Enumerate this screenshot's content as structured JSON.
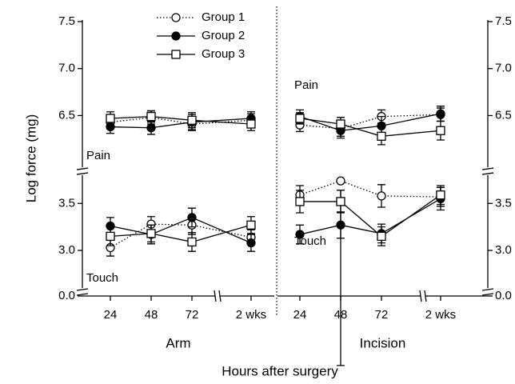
{
  "chart_data": [
    {
      "type": "line",
      "title": "Arm",
      "ylabel": "Log force (mg)",
      "xlabel": "Hours after surgery",
      "categories": [
        "24",
        "48",
        "72",
        "2 wks"
      ],
      "ylim": [
        0,
        7.5
      ],
      "y_breaks": [
        [
          0,
          2.6
        ],
        [
          3.8,
          5.95
        ]
      ],
      "yticks": [
        {
          "value": 0,
          "label": "0.0"
        },
        {
          "value": 3,
          "label": "3.0"
        },
        3.5,
        6.5,
        {
          "value": 7,
          "label": "7.0"
        },
        7.5
      ],
      "annotations": [
        "Pain",
        "Touch"
      ],
      "series": [
        {
          "name": "Group 1",
          "color": "#000000",
          "marker": "open-circle",
          "dash": "dotted",
          "pain": [
            6.43,
            6.48,
            6.41,
            6.45
          ],
          "pain_err": [
            0.07,
            0.07,
            0.07,
            0.07
          ],
          "touch": [
            3.03,
            3.28,
            3.27,
            3.14
          ],
          "touch_err": [
            0.09,
            0.08,
            0.1,
            0.08
          ]
        },
        {
          "name": "Group 2",
          "color": "#000000",
          "marker": "filled-circle",
          "dash": "solid",
          "pain": [
            6.38,
            6.37,
            6.43,
            6.47
          ],
          "pain_err": [
            0.07,
            0.07,
            0.08,
            0.07
          ],
          "touch": [
            3.26,
            3.17,
            3.35,
            3.08
          ],
          "touch_err": [
            0.09,
            0.1,
            0.1,
            0.09
          ]
        },
        {
          "name": "Group 3",
          "color": "#000000",
          "marker": "open-square",
          "dash": "solid",
          "pain": [
            6.47,
            6.49,
            6.45,
            6.41
          ],
          "pain_err": [
            0.07,
            0.06,
            0.08,
            0.07
          ],
          "touch": [
            3.15,
            3.18,
            3.09,
            3.27
          ],
          "touch_err": [
            0.1,
            0.09,
            0.1,
            0.09
          ]
        }
      ]
    },
    {
      "type": "line",
      "title": "Incision",
      "categories": [
        "24",
        "48",
        "72",
        "2 wks"
      ],
      "ylim": [
        0,
        7.5
      ],
      "y_breaks": [
        [
          0,
          2.6
        ],
        [
          3.8,
          5.95
        ]
      ],
      "yticks": [
        {
          "value": 0,
          "label": "0.0"
        },
        {
          "value": 3,
          "label": "3.0"
        },
        3.5,
        6.5,
        {
          "value": 7,
          "label": "7.0"
        },
        7.5
      ],
      "annotations": [
        "Pain",
        "Touch"
      ],
      "series": [
        {
          "name": "Group 1",
          "color": "#000000",
          "marker": "open-circle",
          "dash": "dotted",
          "pain": [
            6.4,
            6.36,
            6.49,
            6.51
          ],
          "pain_err": [
            0.07,
            0.08,
            0.07,
            0.07
          ],
          "touch": [
            3.59,
            3.74,
            3.58,
            3.57
          ],
          "touch_err": [
            0.1,
            0.1,
            0.12,
            0.1
          ]
        },
        {
          "name": "Group 2",
          "color": "#000000",
          "marker": "filled-circle",
          "dash": "solid",
          "pain": [
            6.49,
            6.34,
            6.39,
            6.52
          ],
          "pain_err": [
            0.07,
            0.08,
            0.1,
            0.08
          ],
          "touch": [
            3.17,
            3.27,
            3.18,
            3.55
          ],
          "touch_err": [
            0.1,
            0.14,
            0.1,
            0.12
          ]
        },
        {
          "name": "Group 3",
          "color": "#000000",
          "marker": "open-square",
          "dash": "solid",
          "pain": [
            6.47,
            6.41,
            6.28,
            6.34
          ],
          "pain_err": [
            0.06,
            0.07,
            0.09,
            0.1
          ],
          "touch": [
            3.52,
            3.52,
            3.15,
            3.59
          ],
          "touch_err": [
            0.12,
            0.12,
            0.1,
            0.1
          ]
        }
      ]
    }
  ]
}
